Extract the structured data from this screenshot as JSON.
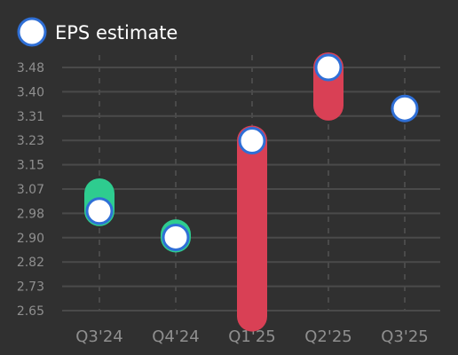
{
  "chart_data": {
    "type": "scatter",
    "legend": {
      "position": "top-left",
      "label": "EPS estimate"
    },
    "categories": [
      "Q3'24",
      "Q4'24",
      "Q1'25",
      "Q2'25",
      "Q3'25"
    ],
    "y_ticks": [
      "2.65",
      "2.73",
      "2.82",
      "2.90",
      "2.98",
      "3.07",
      "3.15",
      "3.23",
      "3.31",
      "3.40",
      "3.48"
    ],
    "ylim": [
      2.65,
      3.48
    ],
    "grid": true,
    "series": [
      {
        "name": "EPS estimate",
        "values": [
          2.99,
          2.9,
          3.23,
          3.48,
          3.34
        ]
      }
    ],
    "actual_eps": [
      3.05,
      2.91,
      2.63,
      3.35,
      null
    ],
    "colors": {
      "background": "#303030",
      "grid": "#4a4a4a",
      "tick_text": "#8f8f8f",
      "legend_text": "#ffffff",
      "beat": "#2ecc8f",
      "miss": "#d94055",
      "marker_fill": "#ffffff",
      "marker_stroke": "#2f6fd6"
    }
  }
}
